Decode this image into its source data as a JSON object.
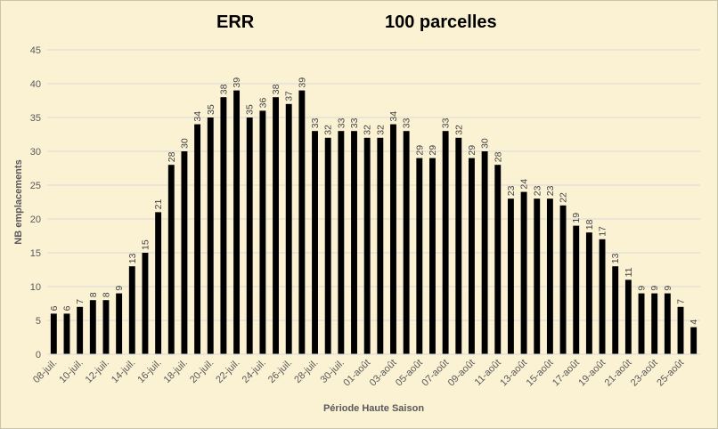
{
  "chart_data": {
    "type": "bar",
    "title_left": "ERR",
    "title_right": "100 parcelles",
    "xlabel": "Période Haute Saison",
    "ylabel": "NB emplacements",
    "ylim": [
      0,
      45
    ],
    "ytick_step": 5,
    "grid": true,
    "bar_color": "#000000",
    "categories": [
      "08-juil.",
      "09-juil.",
      "10-juil.",
      "11-juil.",
      "12-juil.",
      "13-juil.",
      "14-juil.",
      "15-juil.",
      "16-juil.",
      "17-juil.",
      "18-juil.",
      "19-juil.",
      "20-juil.",
      "21-juil.",
      "22-juil.",
      "23-juil.",
      "24-juil.",
      "25-juil.",
      "26-juil.",
      "27-juil.",
      "28-juil.",
      "29-juil.",
      "30-juil.",
      "31-juil.",
      "01-août",
      "02-août",
      "03-août",
      "04-août",
      "05-août",
      "06-août",
      "07-août",
      "08-août",
      "09-août",
      "10-août",
      "11-août",
      "12-août",
      "13-août",
      "14-août",
      "15-août",
      "16-août",
      "17-août",
      "18-août",
      "19-août",
      "20-août",
      "21-août",
      "22-août",
      "23-août",
      "24-août",
      "25-août",
      "26-août"
    ],
    "values": [
      6,
      6,
      7,
      8,
      8,
      9,
      13,
      15,
      21,
      28,
      30,
      34,
      35,
      38,
      39,
      35,
      36,
      38,
      37,
      39,
      33,
      32,
      33,
      33,
      32,
      32,
      34,
      33,
      29,
      29,
      33,
      32,
      29,
      30,
      28,
      23,
      24,
      23,
      23,
      22,
      19,
      18,
      17,
      13,
      11,
      9,
      9,
      9,
      7,
      4
    ],
    "visible_tick_every": 2
  }
}
